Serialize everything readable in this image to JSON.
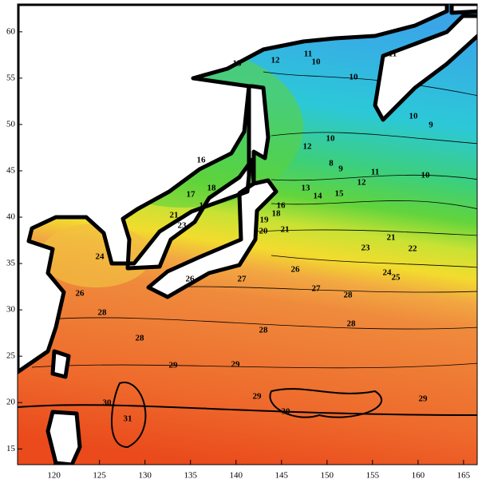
{
  "chart_data": {
    "type": "contour",
    "xlim": [
      116,
      166.5
    ],
    "ylim": [
      13.3,
      63
    ],
    "xticks": [
      120,
      125,
      130,
      135,
      140,
      145,
      150,
      155,
      160,
      165
    ],
    "yticks": [
      15,
      20,
      25,
      30,
      35,
      40,
      45,
      50,
      55,
      60
    ],
    "contour_labels": [
      15,
      12,
      11,
      10,
      10,
      11,
      10,
      9,
      12,
      10,
      9,
      8,
      11,
      12,
      10,
      13,
      14,
      15,
      16,
      18,
      17,
      19,
      21,
      23,
      16,
      18,
      19,
      20,
      21,
      21,
      23,
      22,
      24,
      25,
      24,
      26,
      27,
      26,
      27,
      28,
      26,
      28,
      28,
      28,
      28,
      29,
      29,
      30,
      31,
      29,
      30,
      29
    ]
  }
}
